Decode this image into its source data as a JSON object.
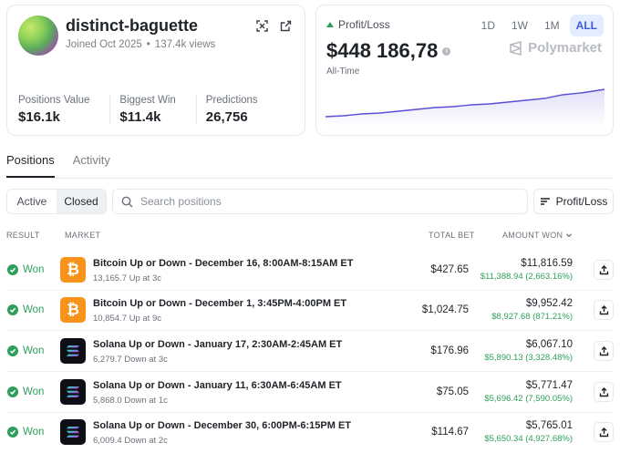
{
  "profile": {
    "username": "distinct-baguette",
    "joined": "Joined Oct 2025",
    "views": "137.4k views",
    "stats": [
      {
        "label": "Positions Value",
        "value": "$16.1k"
      },
      {
        "label": "Biggest Win",
        "value": "$11.4k"
      },
      {
        "label": "Predictions",
        "value": "26,756"
      }
    ]
  },
  "pnl": {
    "title": "Profit/Loss",
    "value": "$448 186,78",
    "period": "All-Time",
    "brand": "Polymarket",
    "ranges": [
      "1D",
      "1W",
      "1M",
      "ALL"
    ],
    "active_range": "ALL",
    "line_color": "#5b4fd6"
  },
  "tabs": [
    "Positions",
    "Activity"
  ],
  "filters": {
    "segments": [
      "Active",
      "Closed"
    ],
    "search_placeholder": "Search positions",
    "sort_label": "Profit/Loss"
  },
  "table": {
    "headers": {
      "result": "RESULT",
      "market": "MARKET",
      "total_bet": "TOTAL BET",
      "amount_won": "AMOUNT WON"
    },
    "rows": [
      {
        "result": "Won",
        "asset": "btc",
        "title": "Bitcoin Up or Down - December 16, 8:00AM-8:15AM ET",
        "sub": "13,165.7 Up at 3c",
        "bet": "$427.65",
        "won": "$11,816.59",
        "profit": "$11,388.94 (2,663.16%)"
      },
      {
        "result": "Won",
        "asset": "btc",
        "title": "Bitcoin Up or Down - December 1, 3:45PM-4:00PM ET",
        "sub": "10,854.7 Up at 9c",
        "bet": "$1,024.75",
        "won": "$9,952.42",
        "profit": "$8,927.68 (871.21%)"
      },
      {
        "result": "Won",
        "asset": "sol",
        "title": "Solana Up or Down - January 17, 2:30AM-2:45AM ET",
        "sub": "6,279.7 Down at 3c",
        "bet": "$176.96",
        "won": "$6,067.10",
        "profit": "$5,890.13 (3,328.48%)"
      },
      {
        "result": "Won",
        "asset": "sol",
        "title": "Solana Up or Down - January 11, 6:30AM-6:45AM ET",
        "sub": "5,868.0 Down at 1c",
        "bet": "$75.05",
        "won": "$5,771.47",
        "profit": "$5,696.42 (7,590.05%)"
      },
      {
        "result": "Won",
        "asset": "sol",
        "title": "Solana Up or Down - December 30, 6:00PM-6:15PM ET",
        "sub": "6,009.4 Down at 2c",
        "bet": "$114.67",
        "won": "$5,765.01",
        "profit": "$5,650.34 (4,927.68%)"
      }
    ]
  },
  "icons": {
    "btc": "bitcoin-icon",
    "sol": "solana-icon"
  }
}
